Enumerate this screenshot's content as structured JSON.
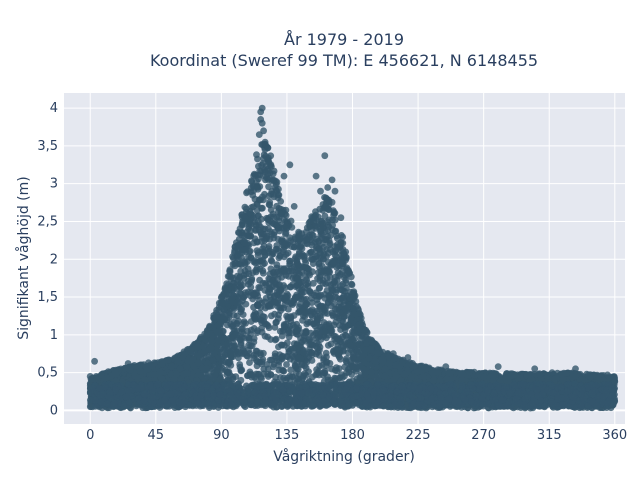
{
  "chart_data": {
    "type": "scatter",
    "title_line1": "År 1979 - 2019",
    "title_line2": "Koordinat (Sweref 99 TM): E 456621, N 6148455",
    "xlabel": "Vågriktning (grader)",
    "ylabel": "Signifikant våghöjd (m)",
    "xlim": [
      -18,
      367
    ],
    "ylim": [
      -0.18,
      4.2
    ],
    "x_ticks": [
      0,
      45,
      90,
      135,
      180,
      225,
      270,
      315,
      360
    ],
    "x_tick_labels": [
      "0",
      "45",
      "90",
      "135",
      "180",
      "225",
      "270",
      "315",
      "360"
    ],
    "y_ticks": [
      0,
      0.5,
      1,
      1.5,
      2,
      2.5,
      3,
      3.5,
      4
    ],
    "y_tick_labels": [
      "0",
      "0,5",
      "1",
      "1,5",
      "2",
      "2,5",
      "3",
      "3,5",
      "4"
    ],
    "grid": true,
    "colors": {
      "marker": "#34566c",
      "plot_bg": "#e5e8f0",
      "grid": "#ffffff",
      "text": "#2a3f5f"
    },
    "envelope": [
      [
        0,
        0.42
      ],
      [
        10,
        0.5
      ],
      [
        20,
        0.55
      ],
      [
        30,
        0.6
      ],
      [
        40,
        0.62
      ],
      [
        50,
        0.65
      ],
      [
        60,
        0.72
      ],
      [
        70,
        0.85
      ],
      [
        80,
        1.05
      ],
      [
        90,
        1.5
      ],
      [
        95,
        1.8
      ],
      [
        100,
        2.25
      ],
      [
        105,
        2.7
      ],
      [
        110,
        3.1
      ],
      [
        115,
        3.45
      ],
      [
        118,
        3.6
      ],
      [
        122,
        3.5
      ],
      [
        127,
        3.15
      ],
      [
        132,
        2.75
      ],
      [
        137,
        2.55
      ],
      [
        142,
        2.35
      ],
      [
        147,
        2.4
      ],
      [
        152,
        2.6
      ],
      [
        157,
        2.75
      ],
      [
        162,
        2.85
      ],
      [
        167,
        2.75
      ],
      [
        172,
        2.4
      ],
      [
        177,
        2.0
      ],
      [
        182,
        1.5
      ],
      [
        187,
        1.15
      ],
      [
        192,
        0.95
      ],
      [
        200,
        0.8
      ],
      [
        210,
        0.7
      ],
      [
        225,
        0.6
      ],
      [
        245,
        0.52
      ],
      [
        270,
        0.5
      ],
      [
        300,
        0.48
      ],
      [
        330,
        0.5
      ],
      [
        360,
        0.45
      ]
    ],
    "highlight_points": [
      {
        "x": 118,
        "y": 4.0
      },
      {
        "x": 117,
        "y": 3.95
      },
      {
        "x": 117,
        "y": 3.85
      },
      {
        "x": 118,
        "y": 3.8
      },
      {
        "x": 119,
        "y": 3.7
      },
      {
        "x": 116,
        "y": 3.65
      },
      {
        "x": 120,
        "y": 3.55
      },
      {
        "x": 137,
        "y": 3.25
      },
      {
        "x": 133,
        "y": 3.1
      },
      {
        "x": 161,
        "y": 3.37
      },
      {
        "x": 163,
        "y": 2.95
      },
      {
        "x": 168,
        "y": 2.9
      },
      {
        "x": 158,
        "y": 2.9
      },
      {
        "x": 166,
        "y": 3.05
      },
      {
        "x": 155,
        "y": 3.1
      },
      {
        "x": 3,
        "y": 0.65
      },
      {
        "x": 0,
        "y": 0.45
      },
      {
        "x": 26,
        "y": 0.62
      },
      {
        "x": 40,
        "y": 0.63
      },
      {
        "x": 208,
        "y": 0.75
      },
      {
        "x": 218,
        "y": 0.7
      },
      {
        "x": 244,
        "y": 0.58
      },
      {
        "x": 280,
        "y": 0.58
      },
      {
        "x": 305,
        "y": 0.55
      },
      {
        "x": 317,
        "y": 0.5
      },
      {
        "x": 333,
        "y": 0.55
      },
      {
        "x": 355,
        "y": 0.47
      },
      {
        "x": 360,
        "y": 0.38
      },
      {
        "x": 128,
        "y": 2.9
      },
      {
        "x": 140,
        "y": 2.7
      },
      {
        "x": 172,
        "y": 2.55
      }
    ]
  }
}
